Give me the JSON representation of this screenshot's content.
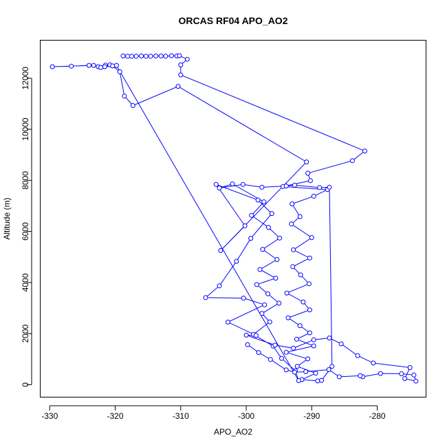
{
  "chart_data": {
    "type": "scatter",
    "title": "ORCAS RF04 APO_AO2",
    "xlabel": "APO_AO2",
    "ylabel": "Altitude (m)",
    "xlim": [
      -331.5,
      -272.5
    ],
    "ylim": [
      -500,
      13500
    ],
    "x_ticks": [
      -330,
      -320,
      -310,
      -300,
      -290,
      -280
    ],
    "y_ticks": [
      0,
      2000,
      4000,
      6000,
      8000,
      10000,
      12000
    ],
    "grid": false,
    "legend": "none",
    "colors": {
      "series": "#0000ff",
      "axis": "#000000",
      "background": "#ffffff"
    },
    "series": [
      {
        "marker": "open-circle",
        "line": "solid",
        "points": [
          [
            -318.8,
            12870
          ],
          [
            -318.1,
            12860
          ],
          [
            -317.5,
            12860
          ],
          [
            -316.8,
            12860
          ],
          [
            -316.0,
            12870
          ],
          [
            -315.3,
            12860
          ],
          [
            -314.6,
            12860
          ],
          [
            -313.8,
            12870
          ],
          [
            -313.0,
            12870
          ],
          [
            -312.3,
            12860
          ],
          [
            -311.4,
            12880
          ],
          [
            -310.6,
            12870
          ],
          [
            -310.2,
            12880
          ],
          [
            -309.0,
            12740
          ],
          [
            -310.0,
            12520
          ],
          [
            -310.0,
            12130
          ],
          [
            -281.9,
            9150
          ],
          [
            -283.8,
            8770
          ],
          [
            -290.6,
            8280
          ],
          [
            -290.2,
            7990
          ],
          [
            -294.4,
            7760
          ],
          [
            -287.6,
            7640
          ],
          [
            -289.7,
            7380
          ],
          [
            -293.0,
            7080
          ],
          [
            -291.8,
            6580
          ],
          [
            -293.1,
            6290
          ],
          [
            -290.0,
            5760
          ],
          [
            -292.8,
            5280
          ],
          [
            -290.3,
            4960
          ],
          [
            -292.9,
            4620
          ],
          [
            -291.7,
            4300
          ],
          [
            -290.4,
            3950
          ],
          [
            -293.8,
            3590
          ],
          [
            -291.3,
            3240
          ],
          [
            -290.3,
            2930
          ],
          [
            -293.6,
            2620
          ],
          [
            -291.8,
            2310
          ],
          [
            -290.3,
            2030
          ],
          [
            -292.3,
            1780
          ],
          [
            -289.7,
            1520
          ],
          [
            -293.9,
            1270
          ],
          [
            -290.6,
            1010
          ],
          [
            -292.2,
            720
          ],
          [
            -289.4,
            450
          ],
          [
            -291.5,
            200
          ],
          [
            -289.1,
            150
          ],
          [
            -288.5,
            170
          ],
          [
            -286.9,
            720
          ],
          [
            -287.3,
            7730
          ],
          [
            -288.8,
            7720
          ],
          [
            -292.6,
            7810
          ],
          [
            -293.9,
            7780
          ],
          [
            -297.6,
            7730
          ],
          [
            -300.5,
            7840
          ],
          [
            -304.1,
            7700
          ],
          [
            -302.1,
            7860
          ],
          [
            -297.3,
            7160
          ],
          [
            -299.2,
            6630
          ],
          [
            -296.6,
            6160
          ],
          [
            -294.9,
            5740
          ],
          [
            -297.5,
            5300
          ],
          [
            -295.3,
            4900
          ],
          [
            -297.9,
            4510
          ],
          [
            -295.5,
            4170
          ],
          [
            -298.4,
            3920
          ],
          [
            -296.7,
            3560
          ],
          [
            -295.0,
            3190
          ],
          [
            -297.6,
            2790
          ],
          [
            -296.4,
            2460
          ],
          [
            -298.9,
            1970
          ],
          [
            -295.9,
            1510
          ],
          [
            -294.6,
            1030
          ],
          [
            -292.5,
            550
          ],
          [
            -292.0,
            160
          ],
          [
            -319.8,
            12500
          ],
          [
            -320.8,
            12520
          ],
          [
            -321.5,
            12510
          ],
          [
            -322.6,
            12450
          ],
          [
            -324.0,
            12500
          ],
          [
            -326.7,
            12470
          ],
          [
            -329.6,
            12450
          ],
          [
            -323.3,
            12500
          ],
          [
            -322.2,
            12420
          ],
          [
            -321.6,
            12450
          ],
          [
            -320.4,
            12480
          ],
          [
            -319.3,
            12250
          ],
          [
            -318.6,
            11300
          ],
          [
            -317.3,
            10930
          ],
          [
            -310.4,
            11680
          ],
          [
            -290.8,
            8720
          ],
          [
            -303.9,
            5250
          ],
          [
            -300.2,
            6220
          ],
          [
            -304.6,
            7840
          ],
          [
            -298.2,
            7230
          ],
          [
            -296.1,
            6700
          ],
          [
            -299.3,
            5730
          ],
          [
            -301.5,
            4830
          ],
          [
            -304.1,
            3870
          ],
          [
            -306.2,
            3410
          ],
          [
            -300.4,
            3390
          ],
          [
            -297.2,
            3130
          ],
          [
            -302.8,
            2450
          ],
          [
            -298.5,
            1930
          ],
          [
            -300.0,
            1940
          ],
          [
            -295.6,
            1550
          ],
          [
            -292.8,
            1430
          ],
          [
            -289.7,
            1760
          ],
          [
            -287.3,
            1830
          ],
          [
            -285.5,
            1600
          ],
          [
            -283.0,
            1140
          ],
          [
            -280.6,
            850
          ],
          [
            -275.0,
            670
          ],
          [
            -275.8,
            240
          ],
          [
            -274.1,
            140
          ],
          [
            -274.4,
            380
          ],
          [
            -276.3,
            430
          ],
          [
            -279.5,
            440
          ],
          [
            -282.2,
            310
          ],
          [
            -282.6,
            350
          ],
          [
            -285.8,
            310
          ],
          [
            -287.4,
            590
          ],
          [
            -290.9,
            510
          ],
          [
            -292.6,
            490
          ],
          [
            -293.9,
            580
          ],
          [
            -296.3,
            990
          ],
          [
            -298.1,
            1260
          ],
          [
            -299.8,
            1570
          ]
        ]
      }
    ]
  }
}
